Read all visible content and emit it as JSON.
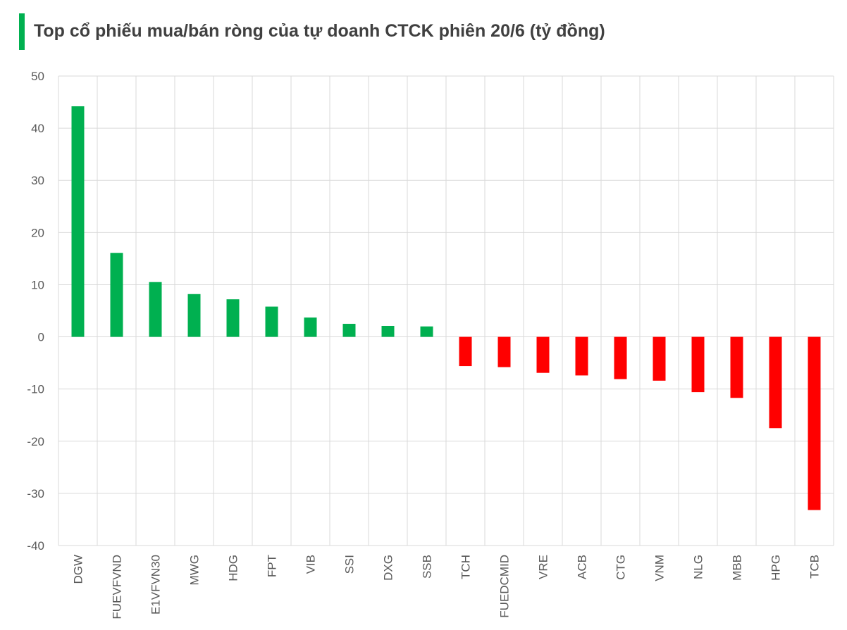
{
  "chart_data": {
    "type": "bar",
    "title": "Top cổ phiếu mua/bán ròng của tự doanh CTCK phiên 20/6 (tỷ đồng)",
    "xlabel": "",
    "ylabel": "",
    "ylim": [
      -40,
      50
    ],
    "yticks": [
      50,
      40,
      30,
      20,
      10,
      0,
      -10,
      -20,
      -30,
      -40
    ],
    "grid": true,
    "legend": "none",
    "categories": [
      "DGW",
      "FUEVFVND",
      "E1VFVN30",
      "MWG",
      "HDG",
      "FPT",
      "VIB",
      "SSI",
      "DXG",
      "SSB",
      "TCH",
      "FUEDCMID",
      "VRE",
      "ACB",
      "CTG",
      "VNM",
      "NLG",
      "MBB",
      "HPG",
      "TCB"
    ],
    "values": [
      44.2,
      16.1,
      10.5,
      8.2,
      7.2,
      5.8,
      3.7,
      2.5,
      2.1,
      2.0,
      -5.6,
      -5.8,
      -6.9,
      -7.4,
      -8.1,
      -8.4,
      -10.6,
      -11.7,
      -17.5,
      -33.2
    ],
    "colors": {
      "positive": "#00b050",
      "negative": "#ff0000",
      "accent": "#00b050"
    }
  }
}
